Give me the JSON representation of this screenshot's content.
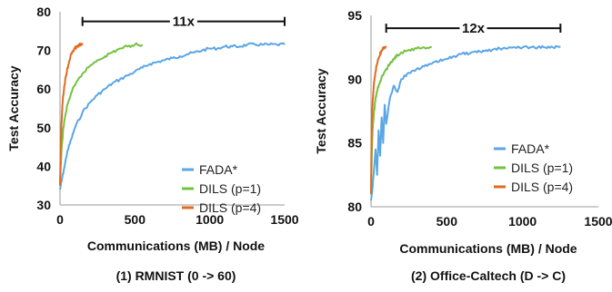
{
  "chart_data": [
    {
      "type": "line",
      "caption": "(1) RMNIST (0 -> 60)",
      "xlabel": "Communications (MB) / Node",
      "ylabel": "Test Accuracy",
      "xlim": [
        0,
        1500
      ],
      "ylim": [
        30,
        80
      ],
      "xticks": [
        "0",
        "500",
        "1000",
        "1500"
      ],
      "yticks": [
        "30",
        "40",
        "50",
        "60",
        "70",
        "80"
      ],
      "legend_position": "bottom-right",
      "annotation": {
        "text": "11x",
        "x_start": 150,
        "x_end": 1500,
        "y": 77.5
      },
      "series": [
        {
          "name": "FADA*",
          "color": "#5aa6e6",
          "x": [
            0,
            10,
            25,
            50,
            75,
            100,
            150,
            200,
            250,
            300,
            350,
            400,
            450,
            500,
            550,
            600,
            650,
            700,
            750,
            800,
            850,
            900,
            950,
            1000,
            1050,
            1100,
            1150,
            1200,
            1250,
            1300,
            1350,
            1400,
            1450,
            1500
          ],
          "y": [
            34,
            36,
            39,
            44,
            47,
            50,
            54,
            56.5,
            58.5,
            60,
            61.5,
            62.5,
            63.5,
            64.5,
            65.5,
            66.5,
            67,
            67.5,
            68,
            68.5,
            69,
            69.5,
            70,
            70.5,
            70.5,
            71,
            71,
            71,
            71.5,
            71.5,
            71.5,
            71.5,
            71.5,
            71.5
          ]
        },
        {
          "name": "DILS (p=1)",
          "color": "#74c140",
          "x": [
            0,
            5,
            10,
            20,
            30,
            50,
            75,
            100,
            150,
            200,
            250,
            300,
            350,
            400,
            450,
            500,
            550
          ],
          "y": [
            35,
            40,
            44,
            49,
            52,
            56,
            59,
            61,
            64,
            66,
            67.5,
            68.5,
            69.5,
            70.5,
            71,
            71.5,
            71.5
          ]
        },
        {
          "name": "DILS (p=4)",
          "color": "#e06a1f",
          "x": [
            0,
            3,
            6,
            10,
            15,
            20,
            30,
            40,
            50,
            60,
            70,
            80,
            90,
            100,
            110,
            120,
            130,
            140,
            150
          ],
          "y": [
            35,
            42,
            47,
            51,
            55,
            58,
            61,
            63.5,
            65.5,
            67,
            68.5,
            69.5,
            70,
            70.5,
            71,
            71,
            71.5,
            71.5,
            71.5
          ]
        }
      ]
    },
    {
      "type": "line",
      "caption": "(2) Office-Caltech (D -> C)",
      "xlabel": "Communications (MB) / Node",
      "ylabel": "Test Accuracy",
      "xlim": [
        0,
        1500
      ],
      "ylim": [
        80,
        95
      ],
      "xticks": [
        "0",
        "500",
        "1000",
        "1500"
      ],
      "yticks": [
        "80",
        "85",
        "90",
        "95"
      ],
      "legend_position": "bottom-right",
      "annotation": {
        "text": "12x",
        "x_start": 100,
        "x_end": 1250,
        "y": 94
      },
      "series": [
        {
          "name": "FADA*",
          "color": "#5aa6e6",
          "x": [
            0,
            10,
            20,
            30,
            40,
            50,
            60,
            70,
            80,
            90,
            100,
            125,
            150,
            175,
            200,
            250,
            300,
            350,
            400,
            450,
            500,
            550,
            600,
            650,
            700,
            750,
            800,
            850,
            900,
            950,
            1000,
            1050,
            1100,
            1150,
            1200,
            1250
          ],
          "y": [
            80.5,
            81.5,
            83,
            84.5,
            82.5,
            86,
            84,
            87,
            85,
            88,
            86.5,
            88.5,
            89.5,
            89,
            90,
            90.5,
            90.8,
            91,
            91.2,
            91.4,
            91.6,
            91.8,
            92,
            92,
            92.1,
            92.2,
            92.3,
            92.4,
            92.4,
            92.5,
            92.5,
            92.5,
            92.5,
            92.5,
            92.5,
            92.5
          ]
        },
        {
          "name": "DILS (p=1)",
          "color": "#74c140",
          "x": [
            0,
            5,
            10,
            20,
            30,
            40,
            50,
            75,
            100,
            125,
            150,
            175,
            200,
            250,
            300,
            350,
            400
          ],
          "y": [
            81,
            84,
            86,
            87.5,
            88.5,
            89,
            89.5,
            90.3,
            90.8,
            91.2,
            91.6,
            91.9,
            92.1,
            92.3,
            92.4,
            92.5,
            92.5
          ]
        },
        {
          "name": "DILS (p=4)",
          "color": "#e06a1f",
          "x": [
            0,
            3,
            6,
            10,
            15,
            20,
            30,
            40,
            50,
            60,
            70,
            80,
            90,
            100
          ],
          "y": [
            81,
            85,
            87,
            88,
            89,
            89.8,
            90.6,
            91.2,
            91.6,
            92,
            92.2,
            92.4,
            92.5,
            92.5
          ]
        }
      ]
    }
  ]
}
